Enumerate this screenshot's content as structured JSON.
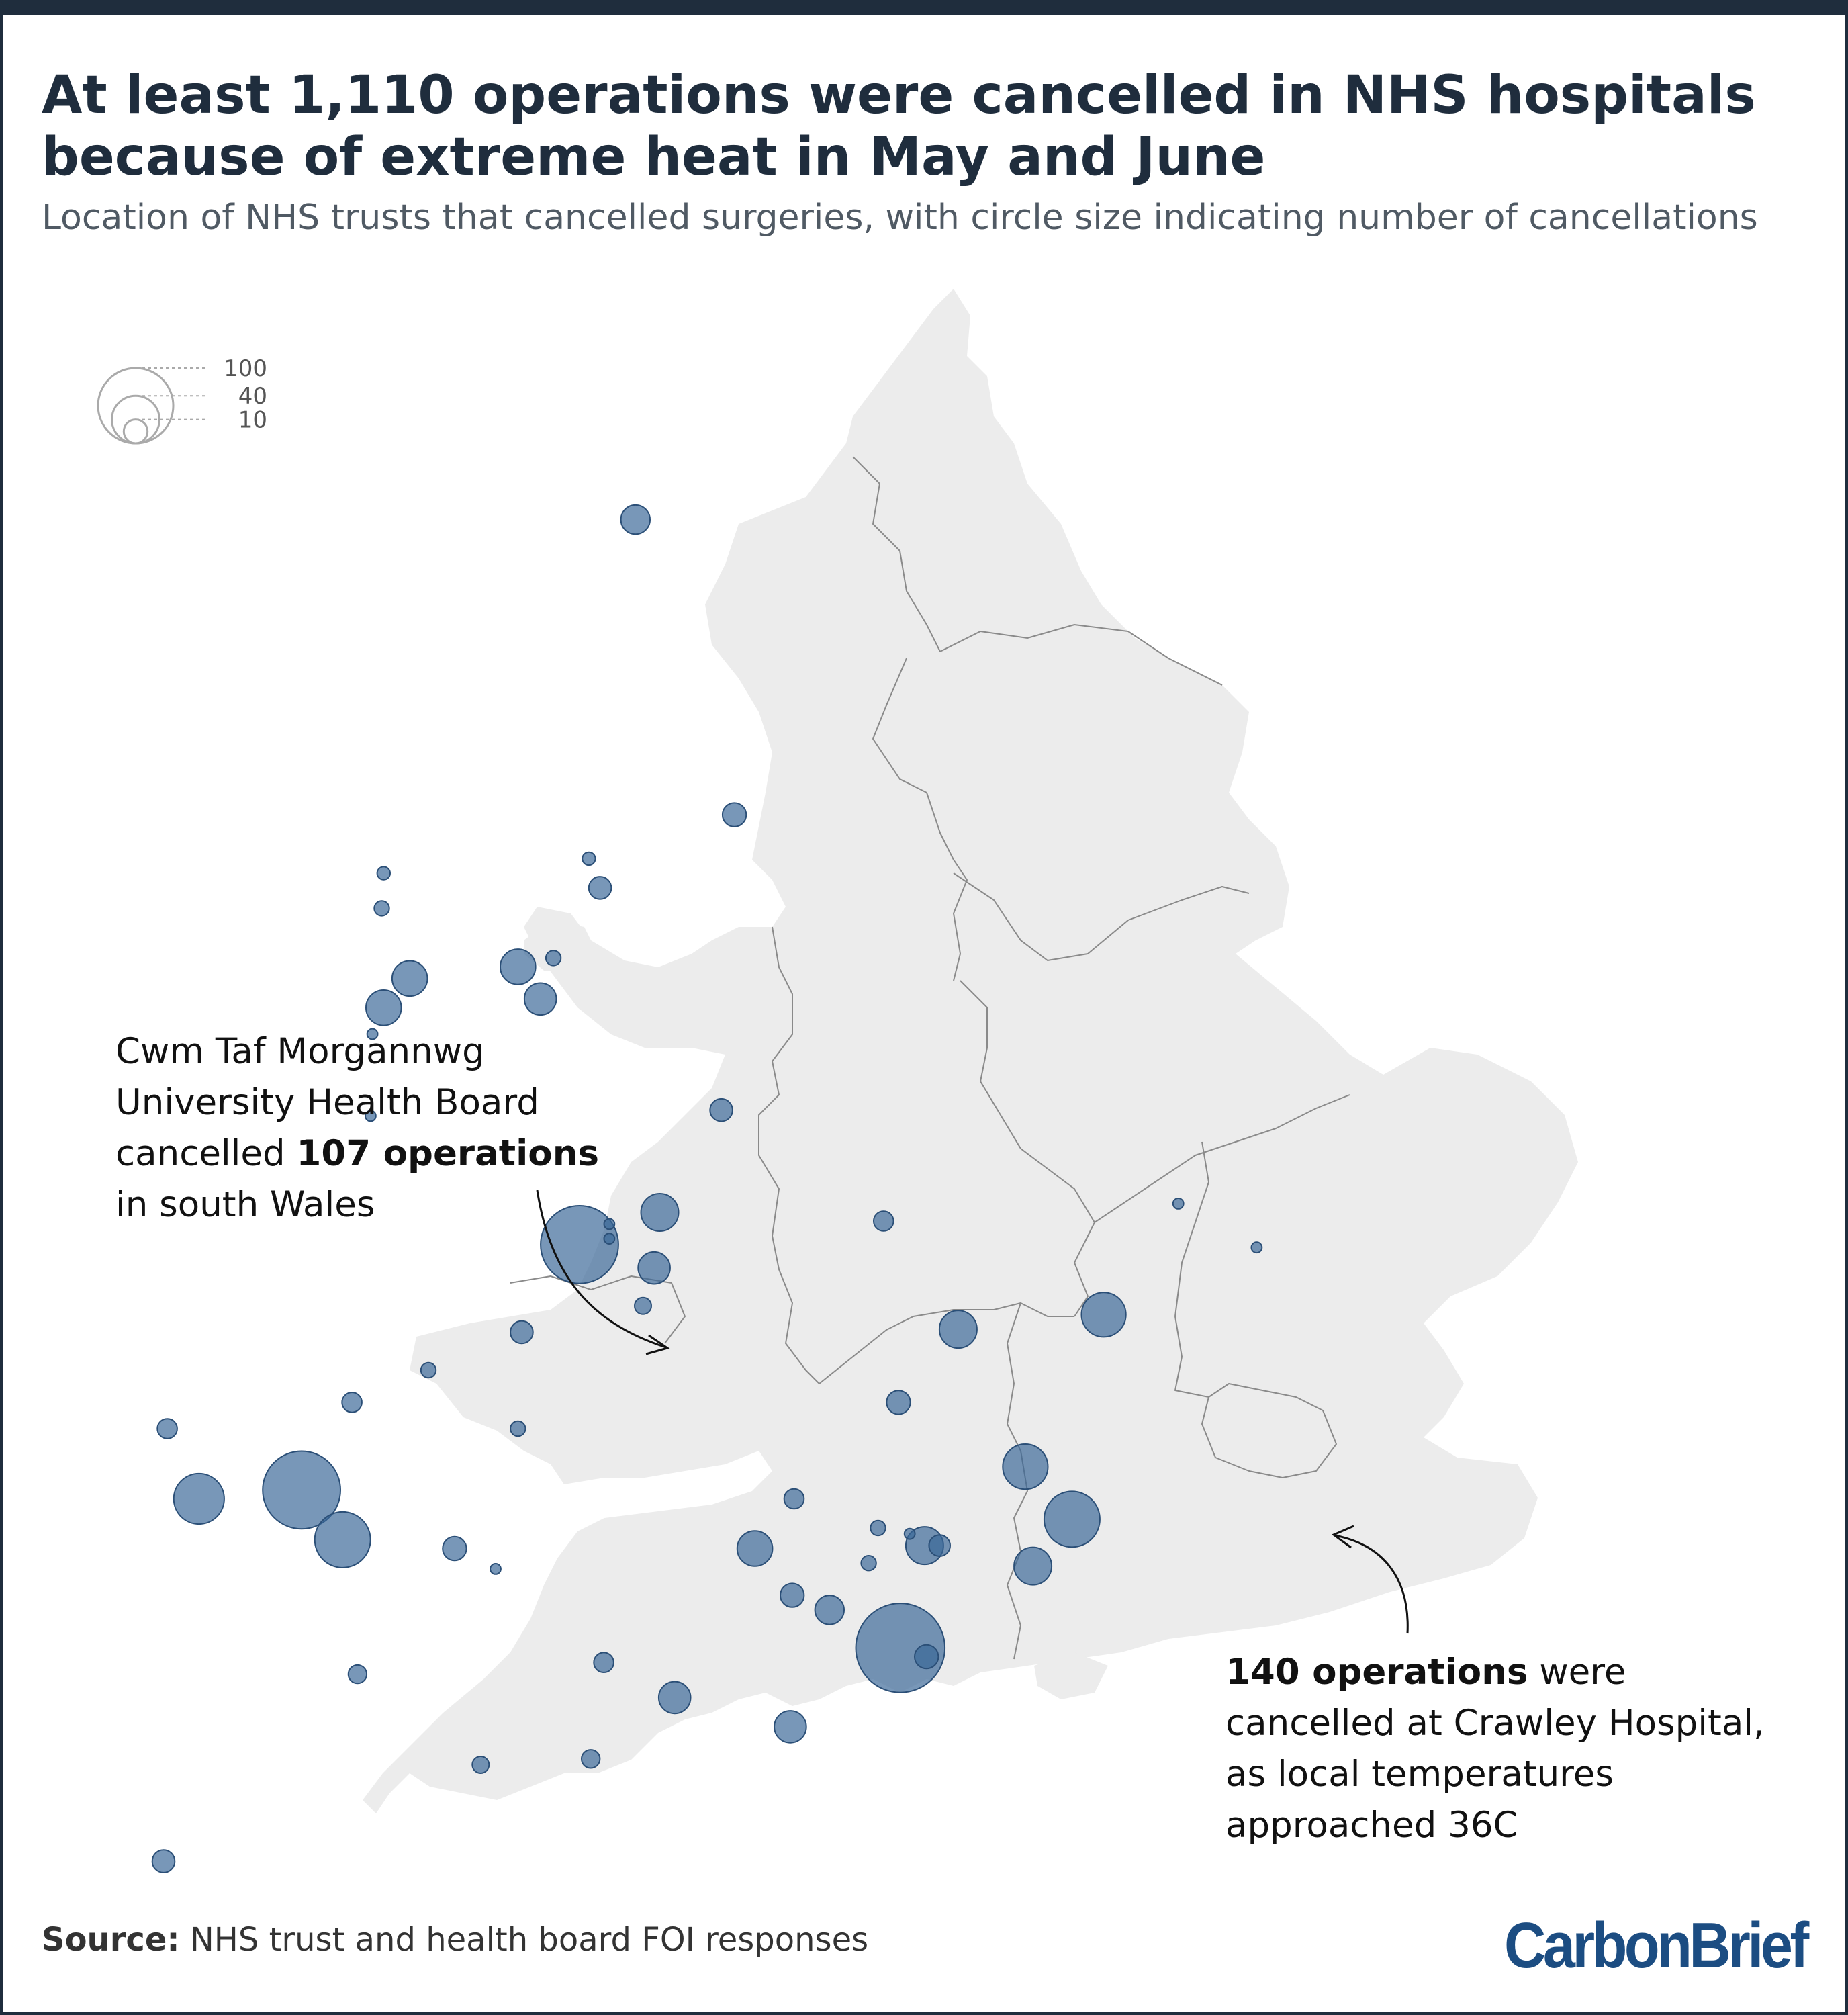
{
  "title": "At least 1,110 operations were cancelled in NHS hospitals because of extreme heat in May and June",
  "subtitle": "Location of NHS trusts that cancelled surgeries, with circle size indicating number of cancellations",
  "legend": {
    "values": [
      100,
      40,
      10
    ],
    "labels": [
      "100",
      "40",
      "10"
    ]
  },
  "annotations": {
    "wales": {
      "line1": "Cwm Taf Morgannwg",
      "line2": "University Health Board",
      "line3_pre": "cancelled ",
      "line3_bold": "107 operations",
      "line4": "in south Wales"
    },
    "crawley": {
      "line1_bold": "140 operations",
      "line1_post": " were",
      "line2": "cancelled at Crawley Hospital,",
      "line3": "as local temperatures",
      "line4": "approached 36C"
    }
  },
  "source": {
    "label": "Source:",
    "text": " NHS trust and health board FOI responses"
  },
  "logo": "CarbonBrief",
  "colors": {
    "land": "#ececec",
    "boundary": "#8a8a8a",
    "circle_fill": "#386596",
    "circle_stroke": "#2b4f77",
    "title": "#1f2d3d",
    "logo": "#1c4d82"
  },
  "map_data": {
    "type": "bubble-map",
    "size_encoding": "number of cancellations",
    "points": [
      {
        "lon": -1.61,
        "lat": 54.97,
        "value": 15
      },
      {
        "lon": -1.08,
        "lat": 53.96,
        "value": 10
      },
      {
        "lon": -2.96,
        "lat": 53.76,
        "value": 3
      },
      {
        "lon": -2.97,
        "lat": 53.64,
        "value": 4
      },
      {
        "lon": -1.86,
        "lat": 53.81,
        "value": 3
      },
      {
        "lon": -1.8,
        "lat": 53.71,
        "value": 9
      },
      {
        "lon": -2.82,
        "lat": 53.4,
        "value": 22
      },
      {
        "lon": -2.96,
        "lat": 53.3,
        "value": 22
      },
      {
        "lon": -3.02,
        "lat": 53.21,
        "value": 2
      },
      {
        "lon": -2.24,
        "lat": 53.44,
        "value": 22
      },
      {
        "lon": -2.05,
        "lat": 53.47,
        "value": 4
      },
      {
        "lon": -2.12,
        "lat": 53.33,
        "value": 18
      },
      {
        "lon": -1.15,
        "lat": 52.95,
        "value": 9
      },
      {
        "lon": -3.03,
        "lat": 52.93,
        "value": 2
      },
      {
        "lon": -1.48,
        "lat": 52.6,
        "value": 25
      },
      {
        "lon": -1.91,
        "lat": 52.49,
        "value": 107
      },
      {
        "lon": -1.75,
        "lat": 52.56,
        "value": 2
      },
      {
        "lon": -1.75,
        "lat": 52.51,
        "value": 2
      },
      {
        "lon": -1.51,
        "lat": 52.41,
        "value": 18
      },
      {
        "lon": -0.28,
        "lat": 52.57,
        "value": 7
      },
      {
        "lon": 1.3,
        "lat": 52.63,
        "value": 2
      },
      {
        "lon": 1.72,
        "lat": 52.48,
        "value": 2
      },
      {
        "lon": -1.57,
        "lat": 52.28,
        "value": 5
      },
      {
        "lon": -2.22,
        "lat": 52.19,
        "value": 9
      },
      {
        "lon": 0.12,
        "lat": 52.2,
        "value": 25
      },
      {
        "lon": 0.9,
        "lat": 52.25,
        "value": 35
      },
      {
        "lon": -0.2,
        "lat": 51.95,
        "value": 10
      },
      {
        "lon": -2.72,
        "lat": 52.06,
        "value": 4
      },
      {
        "lon": -3.13,
        "lat": 51.95,
        "value": 7
      },
      {
        "lon": -4.12,
        "lat": 51.86,
        "value": 7
      },
      {
        "lon": -2.24,
        "lat": 51.86,
        "value": 4
      },
      {
        "lon": -3.4,
        "lat": 51.65,
        "value": 107
      },
      {
        "lon": -3.95,
        "lat": 51.62,
        "value": 45
      },
      {
        "lon": -3.18,
        "lat": 51.48,
        "value": 55
      },
      {
        "lon": -0.76,
        "lat": 51.62,
        "value": 7
      },
      {
        "lon": 0.48,
        "lat": 51.73,
        "value": 36
      },
      {
        "lon": 0.73,
        "lat": 51.55,
        "value": 55
      },
      {
        "lon": -0.31,
        "lat": 51.52,
        "value": 4
      },
      {
        "lon": -0.06,
        "lat": 51.46,
        "value": 25
      },
      {
        "lon": -0.14,
        "lat": 51.5,
        "value": 2
      },
      {
        "lon": 0.02,
        "lat": 51.46,
        "value": 8
      },
      {
        "lon": -0.36,
        "lat": 51.4,
        "value": 4
      },
      {
        "lon": -2.58,
        "lat": 51.45,
        "value": 10
      },
      {
        "lon": -2.36,
        "lat": 51.38,
        "value": 2
      },
      {
        "lon": -0.97,
        "lat": 51.45,
        "value": 22
      },
      {
        "lon": 0.52,
        "lat": 51.39,
        "value": 25
      },
      {
        "lon": -0.77,
        "lat": 51.29,
        "value": 10
      },
      {
        "lon": -0.57,
        "lat": 51.24,
        "value": 15
      },
      {
        "lon": -0.19,
        "lat": 51.11,
        "value": 140
      },
      {
        "lon": -0.05,
        "lat": 51.08,
        "value": 10
      },
      {
        "lon": -3.1,
        "lat": 51.02,
        "value": 6
      },
      {
        "lon": -1.78,
        "lat": 51.06,
        "value": 7
      },
      {
        "lon": -1.4,
        "lat": 50.94,
        "value": 18
      },
      {
        "lon": -0.78,
        "lat": 50.84,
        "value": 18
      },
      {
        "lon": -1.85,
        "lat": 50.73,
        "value": 6
      },
      {
        "lon": -2.44,
        "lat": 50.71,
        "value": 5
      },
      {
        "lon": -4.14,
        "lat": 50.38,
        "value": 9
      },
      {
        "lon": -5.07,
        "lat": 50.26,
        "value": 4
      }
    ]
  }
}
